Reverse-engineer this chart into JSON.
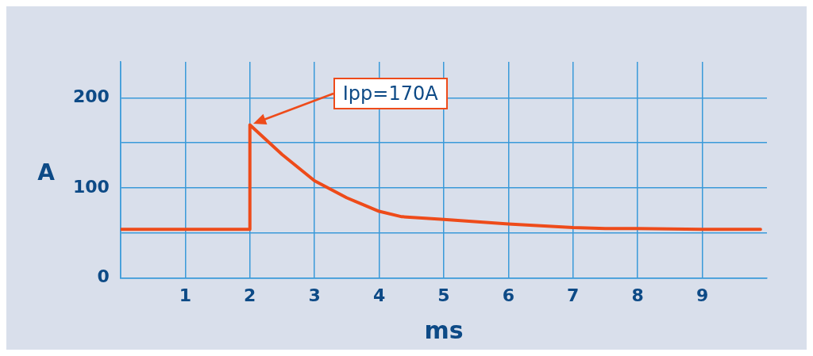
{
  "chart_data": {
    "type": "line",
    "xlabel": "ms",
    "ylabel": "A",
    "x": [
      0,
      2,
      2,
      2.5,
      3,
      3.5,
      4,
      4.35,
      5,
      6,
      7,
      7.5,
      8,
      9,
      9.9
    ],
    "series": [
      {
        "color": "#ee4b1a",
        "values": [
          54,
          54,
          170,
          137,
          108,
          89,
          74,
          68,
          65,
          60,
          56,
          55,
          55,
          54,
          54
        ]
      }
    ],
    "xlim": [
      0,
      10
    ],
    "xticks": [
      {
        "value": 0,
        "label": null
      },
      1,
      2,
      3,
      4,
      5,
      6,
      7,
      8,
      9
    ],
    "ylim": [
      0,
      240
    ],
    "yticks": [
      0,
      {
        "value": 50,
        "label": null
      },
      100,
      {
        "value": 150,
        "label": null
      },
      200
    ],
    "grid": true,
    "marker": "none",
    "line_style": "solid",
    "annotations": [
      "Ipp=170A"
    ]
  }
}
